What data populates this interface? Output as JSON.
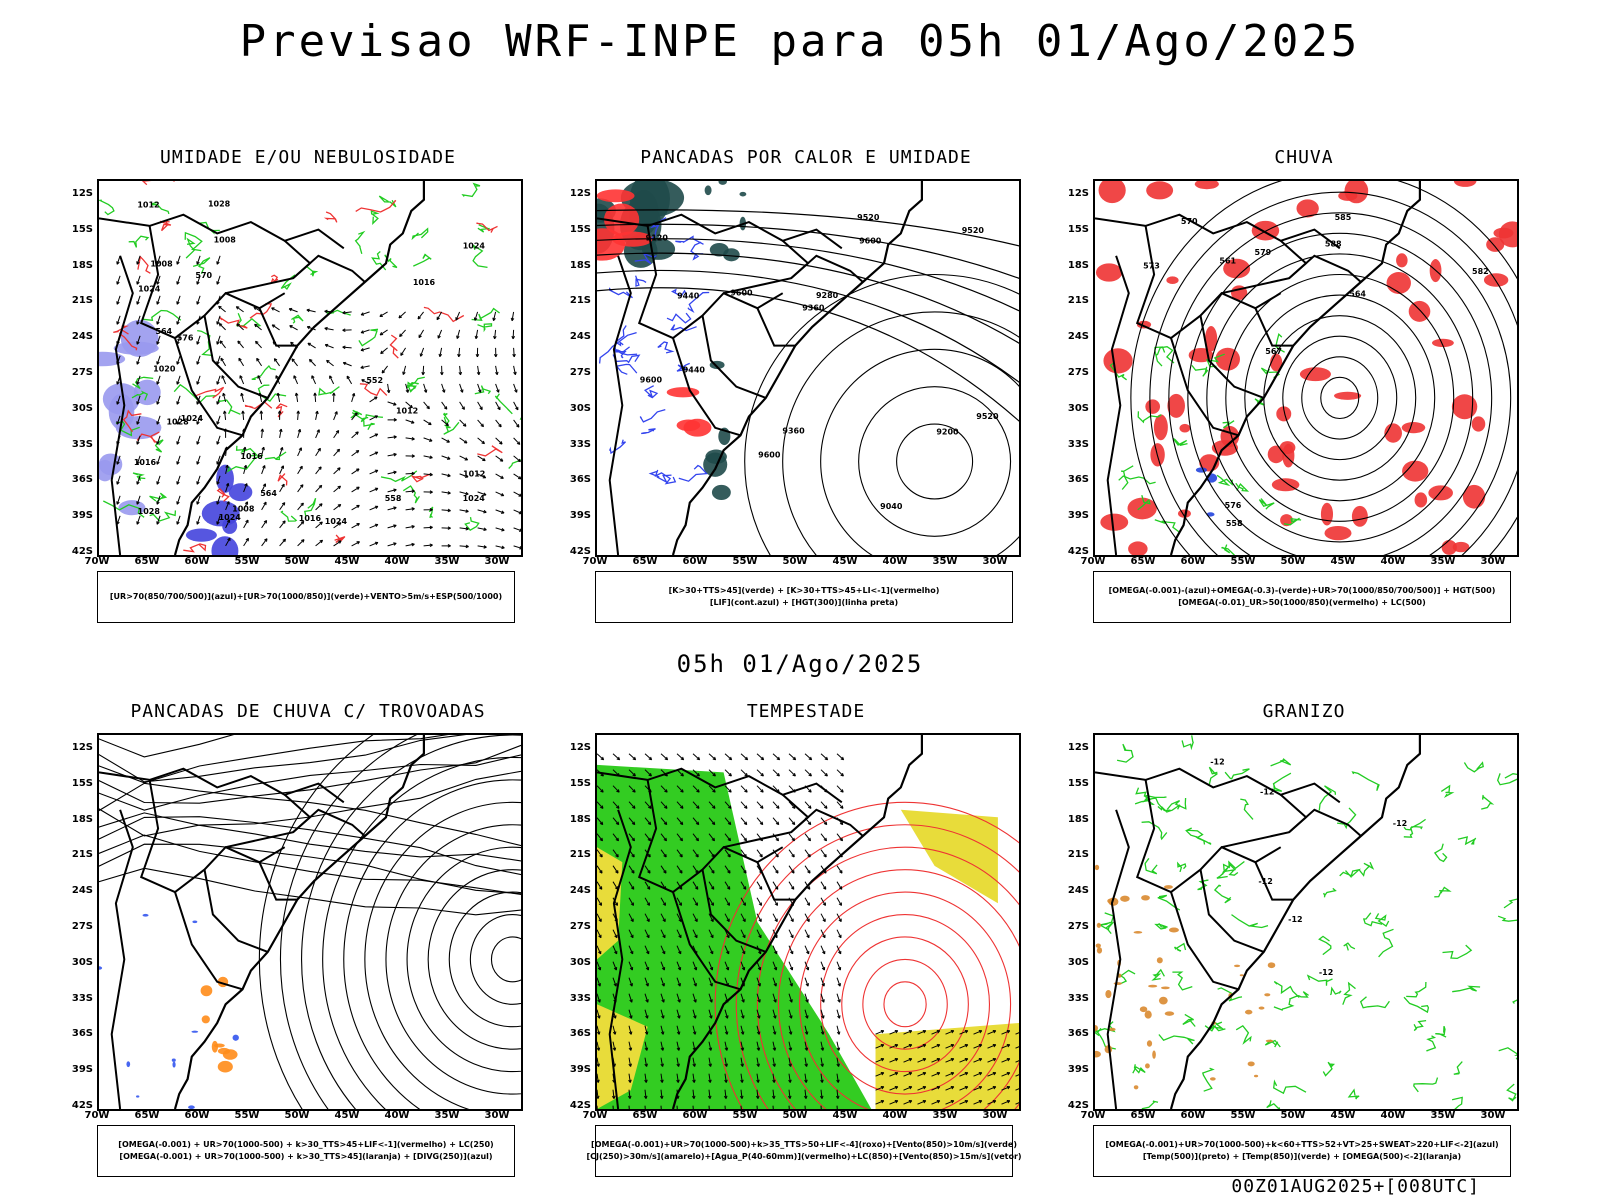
{
  "title": "Previsao WRF-INPE  para 05h 01/Ago/2025",
  "subtitle": "05h 01/Ago/2025",
  "footer": "00Z01AUG2025+[008UTC]",
  "axes": {
    "lat_labels": [
      "12S",
      "15S",
      "18S",
      "21S",
      "24S",
      "27S",
      "30S",
      "33S",
      "36S",
      "39S",
      "42S"
    ],
    "lon_labels": [
      "70W",
      "65W",
      "60W",
      "55W",
      "50W",
      "45W",
      "40W",
      "35W",
      "30W"
    ]
  },
  "panels": [
    {
      "title": "UMIDADE E/OU NEBULOSIDADE",
      "legend": [
        "[UR>70(850/700/500)](azul)+[UR>70(1000/850)](verde)+VENTO>5m/s+ESP(500/1000)"
      ],
      "contour_labels": [
        "1016",
        "1016",
        "1012",
        "1016",
        "1024",
        "1024",
        "1024",
        "1028",
        "1028",
        "1024",
        "1020",
        "1024",
        "1012",
        "1008",
        "1008",
        "1016",
        "1012",
        "1008",
        "1028",
        "1024",
        "570",
        "576",
        "564",
        "564",
        "552",
        "558"
      ]
    },
    {
      "title": "PANCADAS POR CALOR E UMIDADE",
      "legend": [
        "[K>30+TTS>45](verde) + [K>30+TTS>45+LI<-1](vermelho)",
        "[LIF](cont.azul) + [HGT(300)](linha preta)"
      ],
      "contour_labels": [
        "9600",
        "9600",
        "9600",
        "9600",
        "9520",
        "9520",
        "9440",
        "9360",
        "9280",
        "9120",
        "9200",
        "9360",
        "9040",
        "9440",
        "9520"
      ]
    },
    {
      "title": "CHUVA",
      "legend": [
        "[OMEGA(-0.001)-(azul)+OMEGA(-0.3)-(verde)+UR>70(1000/850/700/500)] + HGT(500)",
        "[OMEGA(-0.01)_UR>50(1000/850)(vermelho) + LC(500)"
      ],
      "contour_labels": [
        "588",
        "585",
        "582",
        "579",
        "576",
        "573",
        "570",
        "567",
        "564",
        "561",
        "558"
      ]
    },
    {
      "title": "PANCADAS DE CHUVA C/ TROVOADAS",
      "legend": [
        "[OMEGA(-0.001) + UR>70(1000-500) + k>30_TTS>45+LIF<-1](vermelho) + LC(250)",
        "[OMEGA(-0.001) + UR>70(1000-500) + k>30_TTS>45](laranja) + [DIVG(250)](azul)"
      ],
      "contour_labels": []
    },
    {
      "title": "TEMPESTADE",
      "legend": [
        "[OMEGA(-0.001)+UR>70(1000-500)+k>35_TTS>50+LIF<-4](roxo)+[Vento(850)>10m/s](verde)",
        "[CJ(250)>30m/s](amarelo)+[Agua_P(40-60mm)](vermelho)+LC(850)+[Vento(850)>15m/s](vetor)"
      ],
      "contour_labels": []
    },
    {
      "title": "GRANIZO",
      "legend": [
        "[OMEGA(-0.001)+UR>70(1000-500)+k<60+TTS>52+VT>25+SWEAT>220+LIF<-2](azul)",
        "[Temp(500)](preto) + [Temp(850)](verde) + [OMEGA(500)<-2](laranja)"
      ],
      "contour_labels": [
        "-12",
        "-12",
        "-12",
        "-12",
        "-12",
        "-12"
      ]
    }
  ]
}
